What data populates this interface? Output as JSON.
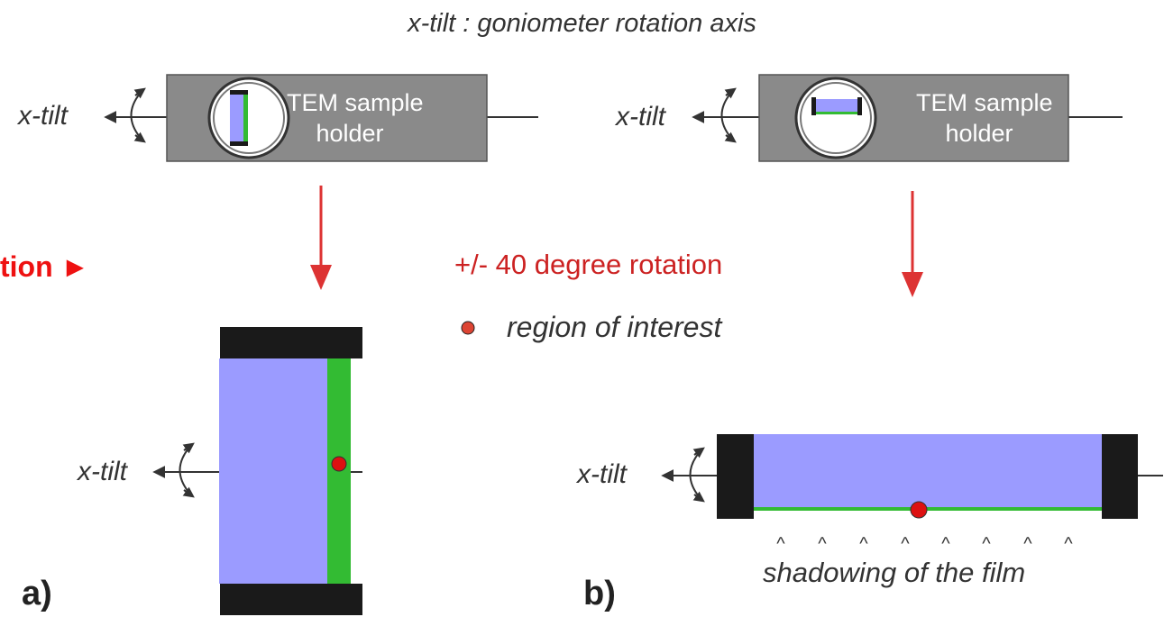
{
  "diagram": {
    "header": "x-tilt : goniometer rotation axis",
    "axis_label": "x-tilt",
    "holder_line1": "TEM sample",
    "holder_line2": "holder",
    "rotation_text": "+/- 40 degree rotation",
    "roi_legend": "region of interest",
    "cut_off_label": "tion ►",
    "shadow_label": "shadowing of the film",
    "shadow_mark": "^",
    "panel_a": "a)",
    "panel_b": "b)",
    "colors": {
      "holder": "#8a8a8a",
      "sample_film": "#9b9bff",
      "green_layer": "#33bb33",
      "clamp": "#1a1a1a",
      "arrow_red": "#dd3333",
      "roi_dot": "#dd1111",
      "text": "#333333"
    }
  }
}
